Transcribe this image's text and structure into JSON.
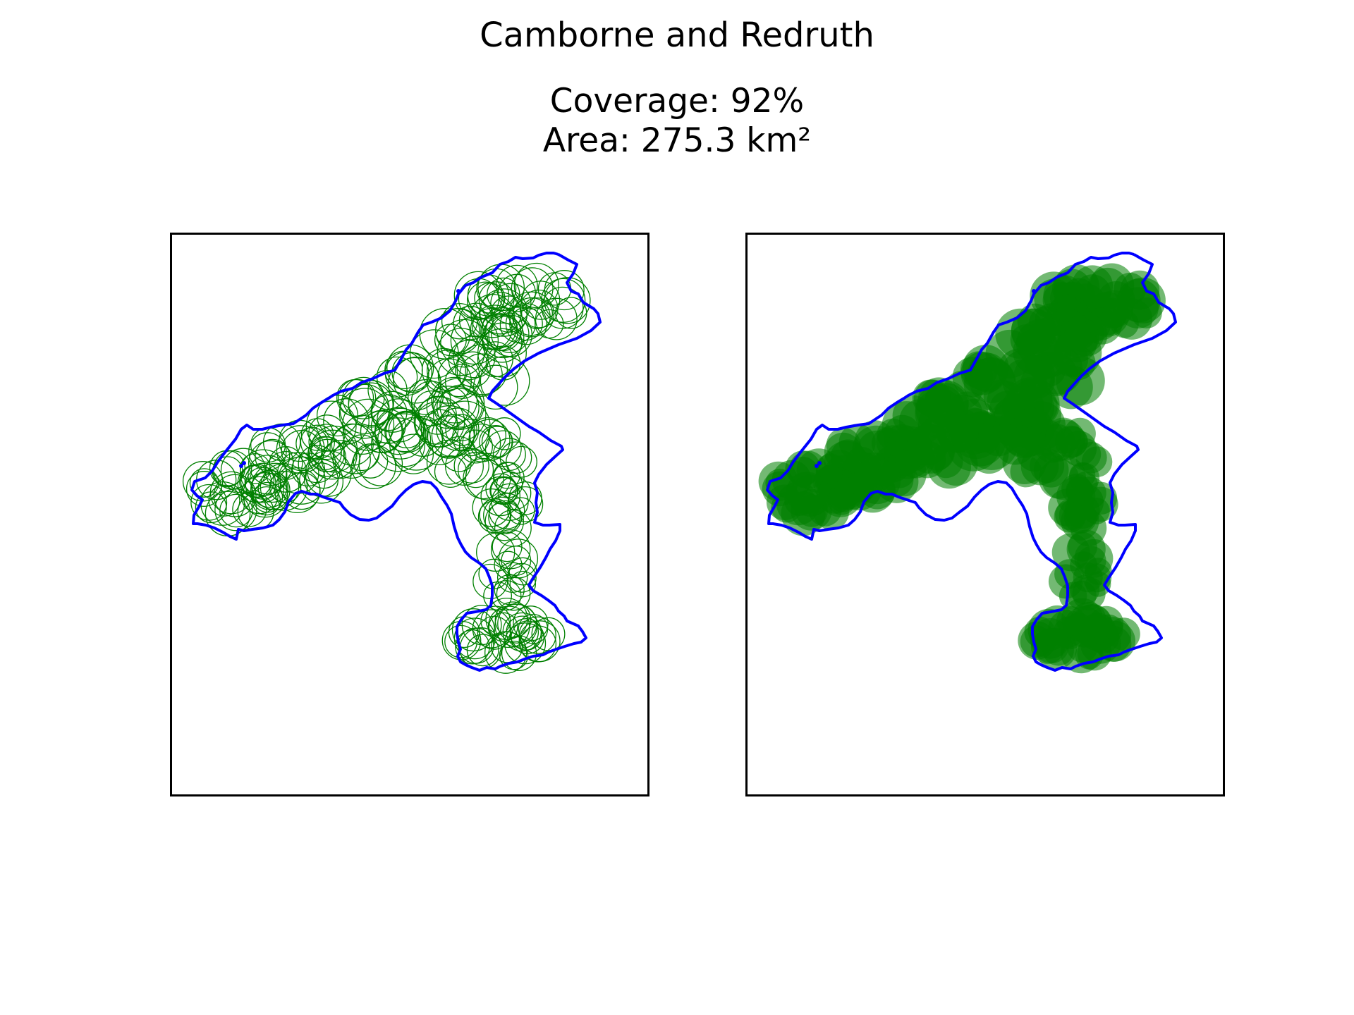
{
  "figure": {
    "title": "Camborne and Redruth",
    "subtitle": {
      "coverage": "Coverage: 92%",
      "area": "Area: 275.3 km²"
    }
  },
  "map": {
    "boundary_color": "#0000ff",
    "circle_color": "#008000",
    "panels": [
      {
        "style": "circle outlines",
        "fill": "none"
      },
      {
        "style": "filled circles",
        "fill": "#008000"
      }
    ]
  }
}
